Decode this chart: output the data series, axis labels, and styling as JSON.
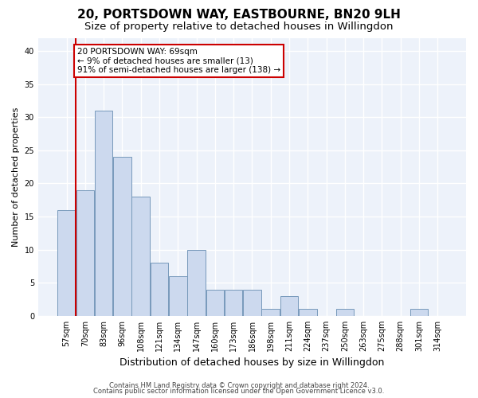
{
  "title": "20, PORTSDOWN WAY, EASTBOURNE, BN20 9LH",
  "subtitle": "Size of property relative to detached houses in Willingdon",
  "xlabel": "Distribution of detached houses by size in Willingdon",
  "ylabel": "Number of detached properties",
  "categories": [
    "57sqm",
    "70sqm",
    "83sqm",
    "96sqm",
    "108sqm",
    "121sqm",
    "134sqm",
    "147sqm",
    "160sqm",
    "173sqm",
    "186sqm",
    "198sqm",
    "211sqm",
    "224sqm",
    "237sqm",
    "250sqm",
    "263sqm",
    "275sqm",
    "288sqm",
    "301sqm",
    "314sqm"
  ],
  "values": [
    16,
    19,
    31,
    24,
    18,
    8,
    6,
    10,
    4,
    4,
    4,
    1,
    3,
    1,
    0,
    1,
    0,
    0,
    0,
    1,
    0
  ],
  "bar_color": "#ccd9ee",
  "bar_edge_color": "#7799bb",
  "highlight_color": "#cc0000",
  "annotation_text": "20 PORTSDOWN WAY: 69sqm\n← 9% of detached houses are smaller (13)\n91% of semi-detached houses are larger (138) →",
  "annotation_box_color": "#ffffff",
  "annotation_box_edge": "#cc0000",
  "ylim": [
    0,
    42
  ],
  "yticks": [
    0,
    5,
    10,
    15,
    20,
    25,
    30,
    35,
    40
  ],
  "footnote1": "Contains HM Land Registry data © Crown copyright and database right 2024.",
  "footnote2": "Contains public sector information licensed under the Open Government Licence v3.0.",
  "bg_color": "#edf2fa",
  "grid_color": "#ffffff",
  "title_fontsize": 11,
  "subtitle_fontsize": 9.5,
  "ylabel_fontsize": 8,
  "xlabel_fontsize": 9,
  "tick_fontsize": 7,
  "annot_fontsize": 7.5,
  "footnote_fontsize": 6
}
